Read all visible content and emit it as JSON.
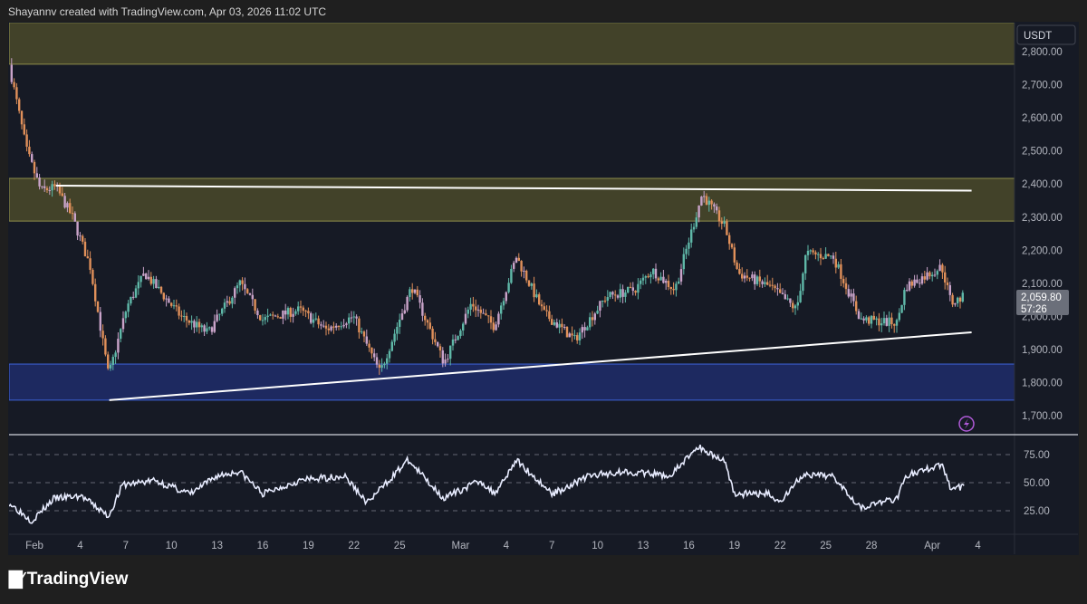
{
  "header": {
    "attribution": "Shayannv created with TradingView.com, Apr 03, 2026 11:02 UTC"
  },
  "branding": {
    "logo_text": "TradingView",
    "logo_mark": "TV"
  },
  "price_axis": {
    "currency": "USDT",
    "current_price": "2,059.80",
    "countdown": "57:26"
  },
  "indicator_icon": "lightning-icon",
  "chart_data": {
    "type": "candlestick",
    "price_ticks": [
      1700,
      1800,
      1900,
      2000,
      2100,
      2200,
      2300,
      2400,
      2500,
      2600,
      2700,
      2800
    ],
    "price_tick_labels": [
      "1,700.00",
      "1,800.00",
      "1,900.00",
      "2,000.00",
      "2,100.00",
      "2,200.00",
      "2,300.00",
      "2,400.00",
      "2,500.00",
      "2,600.00",
      "2,700.00",
      "2,800.00"
    ],
    "ylim": [
      1650,
      2890
    ],
    "time_ticks": [
      {
        "date": "2026-02-01",
        "label": "Feb"
      },
      {
        "date": "2026-02-04",
        "label": "4"
      },
      {
        "date": "2026-02-07",
        "label": "7"
      },
      {
        "date": "2026-02-10",
        "label": "10"
      },
      {
        "date": "2026-02-13",
        "label": "13"
      },
      {
        "date": "2026-02-16",
        "label": "16"
      },
      {
        "date": "2026-02-19",
        "label": "19"
      },
      {
        "date": "2026-02-22",
        "label": "22"
      },
      {
        "date": "2026-02-25",
        "label": "25"
      },
      {
        "date": "2026-03-01",
        "label": "Mar"
      },
      {
        "date": "2026-03-04",
        "label": "4"
      },
      {
        "date": "2026-03-07",
        "label": "7"
      },
      {
        "date": "2026-03-10",
        "label": "10"
      },
      {
        "date": "2026-03-13",
        "label": "13"
      },
      {
        "date": "2026-03-16",
        "label": "16"
      },
      {
        "date": "2026-03-19",
        "label": "19"
      },
      {
        "date": "2026-03-22",
        "label": "22"
      },
      {
        "date": "2026-03-25",
        "label": "25"
      },
      {
        "date": "2026-03-28",
        "label": "28"
      },
      {
        "date": "2026-04-01",
        "label": "Apr"
      },
      {
        "date": "2026-04-04",
        "label": "4"
      }
    ],
    "price_path": [
      [
        "2026-01-30T08:00",
        2760
      ],
      [
        "2026-01-31T12:00",
        2500
      ],
      [
        "2026-02-01T10:00",
        2380
      ],
      [
        "2026-02-02T10:00",
        2390
      ],
      [
        "2026-02-03T12:00",
        2300
      ],
      [
        "2026-02-04T16:00",
        2150
      ],
      [
        "2026-02-05T21:00",
        1820
      ],
      [
        "2026-02-07T02:00",
        2030
      ],
      [
        "2026-02-08T06:00",
        2130
      ],
      [
        "2026-02-10T15:00",
        2000
      ],
      [
        "2026-02-12T10:00",
        1950
      ],
      [
        "2026-02-14T12:00",
        2100
      ],
      [
        "2026-02-16T00:00",
        1990
      ],
      [
        "2026-02-18T10:00",
        2020
      ],
      [
        "2026-02-20T04:00",
        1960
      ],
      [
        "2026-02-21T23:00",
        2000
      ],
      [
        "2026-02-23T17:00",
        1830
      ],
      [
        "2026-02-25T19:00",
        2090
      ],
      [
        "2026-02-27T22:00",
        1860
      ],
      [
        "2026-03-01T17:00",
        2040
      ],
      [
        "2026-03-03T05:00",
        1970
      ],
      [
        "2026-03-04T16:00",
        2180
      ],
      [
        "2026-03-06T11:00",
        2010
      ],
      [
        "2026-03-08T12:00",
        1930
      ],
      [
        "2026-03-10T14:00",
        2060
      ],
      [
        "2026-03-12T10:00",
        2080
      ],
      [
        "2026-03-13T14:00",
        2140
      ],
      [
        "2026-03-15T02:00",
        2080
      ],
      [
        "2026-03-16T21:00",
        2370
      ],
      [
        "2026-03-18T09:00",
        2270
      ],
      [
        "2026-03-19T06:00",
        2130
      ],
      [
        "2026-03-21T08:00",
        2090
      ],
      [
        "2026-03-23T02:00",
        2020
      ],
      [
        "2026-03-23T17:00",
        2190
      ],
      [
        "2026-03-25T12:00",
        2180
      ],
      [
        "2026-03-27T07:00",
        1990
      ],
      [
        "2026-03-29T16:00",
        1980
      ],
      [
        "2026-03-30T06:00",
        2090
      ],
      [
        "2026-04-01T15:00",
        2150
      ],
      [
        "2026-04-02T06:00",
        2040
      ],
      [
        "2026-04-03T03:00",
        2060
      ]
    ],
    "zones": [
      {
        "name": "upper-supply-zone",
        "from": 2762,
        "to": 2888,
        "color": "#4a4a2a",
        "border": "#8d8d4a"
      },
      {
        "name": "resistance-zone",
        "from": 2288,
        "to": 2417,
        "color": "#4a4a2a",
        "border": "#8d8d4a"
      },
      {
        "name": "support-zone",
        "from": 1747,
        "to": 1856,
        "color": "#1f2d6b",
        "border": "#3e63d8"
      }
    ],
    "trendlines": [
      {
        "name": "upper-trendline",
        "start": [
          "2026-02-02T10:00",
          2395
        ],
        "end": [
          "2026-04-03T14:00",
          2380
        ]
      },
      {
        "name": "lower-trendline",
        "start": [
          "2026-02-05T22:00",
          1747
        ],
        "end": [
          "2026-04-03T14:00",
          1952
        ]
      }
    ],
    "rsi": {
      "ticks": [
        25,
        50,
        75
      ],
      "tick_labels": [
        "25.00",
        "50.00",
        "75.00"
      ],
      "ylim": [
        0,
        100
      ],
      "path": [
        [
          "2026-01-30T08:00",
          32
        ],
        [
          "2026-01-31T20:00",
          16
        ],
        [
          "2026-02-02T07:00",
          36
        ],
        [
          "2026-02-04T02:00",
          38
        ],
        [
          "2026-02-05T21:00",
          20
        ],
        [
          "2026-02-06T19:00",
          48
        ],
        [
          "2026-02-08T21:00",
          52
        ],
        [
          "2026-02-11T06:00",
          40
        ],
        [
          "2026-02-13T00:00",
          56
        ],
        [
          "2026-02-14T12:00",
          60
        ],
        [
          "2026-02-16T00:00",
          40
        ],
        [
          "2026-02-18T10:00",
          52
        ],
        [
          "2026-02-21T09:00",
          56
        ],
        [
          "2026-02-22T21:00",
          32
        ],
        [
          "2026-02-25T13:00",
          70
        ],
        [
          "2026-02-27T22:00",
          36
        ],
        [
          "2026-03-02T07:00",
          52
        ],
        [
          "2026-03-03T05:00",
          40
        ],
        [
          "2026-03-04T16:00",
          70
        ],
        [
          "2026-03-07T01:00",
          40
        ],
        [
          "2026-03-09T10:00",
          56
        ],
        [
          "2026-03-11T19:00",
          60
        ],
        [
          "2026-03-14T19:00",
          56
        ],
        [
          "2026-03-16T14:00",
          82
        ],
        [
          "2026-03-18T09:00",
          69
        ],
        [
          "2026-03-19T00:00",
          40
        ],
        [
          "2026-03-21T08:00",
          40
        ],
        [
          "2026-03-21T22:00",
          32
        ],
        [
          "2026-03-23T10:00",
          56
        ],
        [
          "2026-03-25T12:00",
          56
        ],
        [
          "2026-03-27T07:00",
          28
        ],
        [
          "2026-03-29T16:00",
          36
        ],
        [
          "2026-03-30T06:00",
          56
        ],
        [
          "2026-04-01T15:00",
          66
        ],
        [
          "2026-04-02T06:00",
          44
        ],
        [
          "2026-04-03T03:00",
          47
        ]
      ]
    },
    "colors": {
      "background": "#161a25",
      "bull": "#5fb8a8",
      "bear": "#e0905a",
      "alt": "#c9a3c9",
      "rsi_line": "#e8ecff",
      "price_label": "#6b6f7a"
    }
  }
}
